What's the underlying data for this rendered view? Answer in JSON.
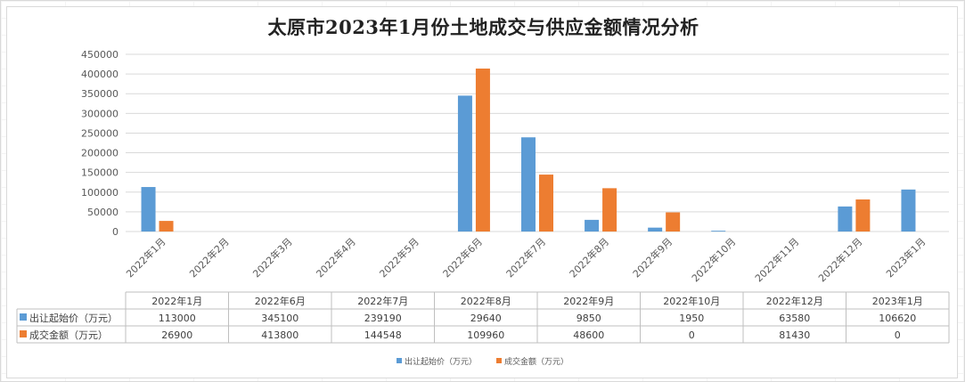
{
  "chart_data": {
    "type": "bar",
    "title": "太原市2023年1月份土地成交与供应金额情况分析",
    "categories": [
      "2022年1月",
      "2022年2月",
      "2022年3月",
      "2022年4月",
      "2022年5月",
      "2022年6月",
      "2022年7月",
      "2022年8月",
      "2022年9月",
      "2022年10月",
      "2022年11月",
      "2022年12月",
      "2023年1月"
    ],
    "series": [
      {
        "name": "出让起始价（万元）",
        "color": "#5b9bd5",
        "values": [
          113000,
          0,
          0,
          0,
          0,
          345100,
          239190,
          29640,
          9850,
          1950,
          0,
          63580,
          106620
        ]
      },
      {
        "name": "成交金额（万元）",
        "color": "#ed7d31",
        "values": [
          26900,
          0,
          0,
          0,
          0,
          413800,
          144548,
          109960,
          48600,
          0,
          0,
          81430,
          0
        ]
      }
    ],
    "y_ticks": [
      "0",
      "50000",
      "100000",
      "150000",
      "200000",
      "250000",
      "300000",
      "350000",
      "400000",
      "450000"
    ],
    "ylim": [
      0,
      450000
    ],
    "grid": true,
    "legend_position": "bottom",
    "table": {
      "columns": [
        "2022年1月",
        "2022年6月",
        "2022年7月",
        "2022年8月",
        "2022年9月",
        "2022年10月",
        "2022年12月",
        "2023年1月"
      ],
      "rows": [
        {
          "label": "出让起始价（万元）",
          "color": "#5b9bd5",
          "cells": [
            "113000",
            "345100",
            "239190",
            "29640",
            "9850",
            "1950",
            "63580",
            "106620"
          ]
        },
        {
          "label": "成交金额（万元）",
          "color": "#ed7d31",
          "cells": [
            "26900",
            "413800",
            "144548",
            "109960",
            "48600",
            "0",
            "81430",
            "0"
          ]
        }
      ]
    }
  }
}
